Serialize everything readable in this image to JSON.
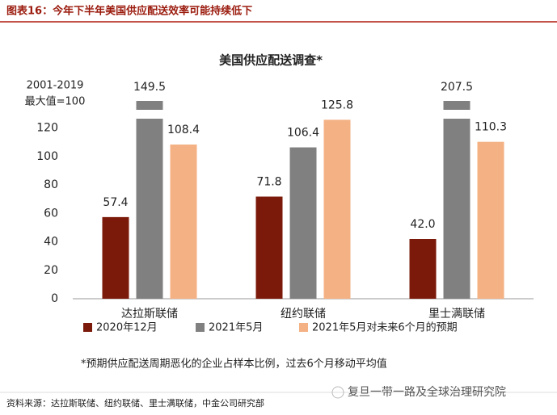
{
  "header": "图表16：今年下半年美国供应配送效率可能持续低下",
  "chart_data": {
    "type": "bar",
    "title": "美国供应配送调查*",
    "y_label": [
      "2001-2019",
      "最大值=100"
    ],
    "categories": [
      "达拉斯联储",
      "纽约联储",
      "里士满联储"
    ],
    "series": [
      {
        "name": "2020年12月",
        "color": "#7b1a0a",
        "values": [
          57.4,
          71.8,
          42.0
        ],
        "value_labels": [
          "57.4",
          "71.8",
          "42.0"
        ]
      },
      {
        "name": "2021年5月",
        "color": "#808080",
        "values": [
          149.5,
          106.4,
          207.5
        ],
        "value_labels": [
          "149.5",
          "106.4",
          "207.5"
        ]
      },
      {
        "name": "2021年5月对未来6个月的预期",
        "color": "#f4b183",
        "values": [
          108.4,
          125.8,
          110.3
        ],
        "value_labels": [
          "108.4",
          "125.8",
          "110.3"
        ]
      }
    ],
    "ylim": [
      0,
      126
    ],
    "yticks": [
      0,
      20,
      40,
      60,
      80,
      100,
      120
    ],
    "footnote": "*预期供应配送周期恶化的企业占样本比例，过去6个月移动平均值"
  },
  "source": "资料来源：达拉斯联储、纽约联储、里士满联储，中金公司研究部",
  "watermark": "复旦一带一路及全球治理研究院"
}
